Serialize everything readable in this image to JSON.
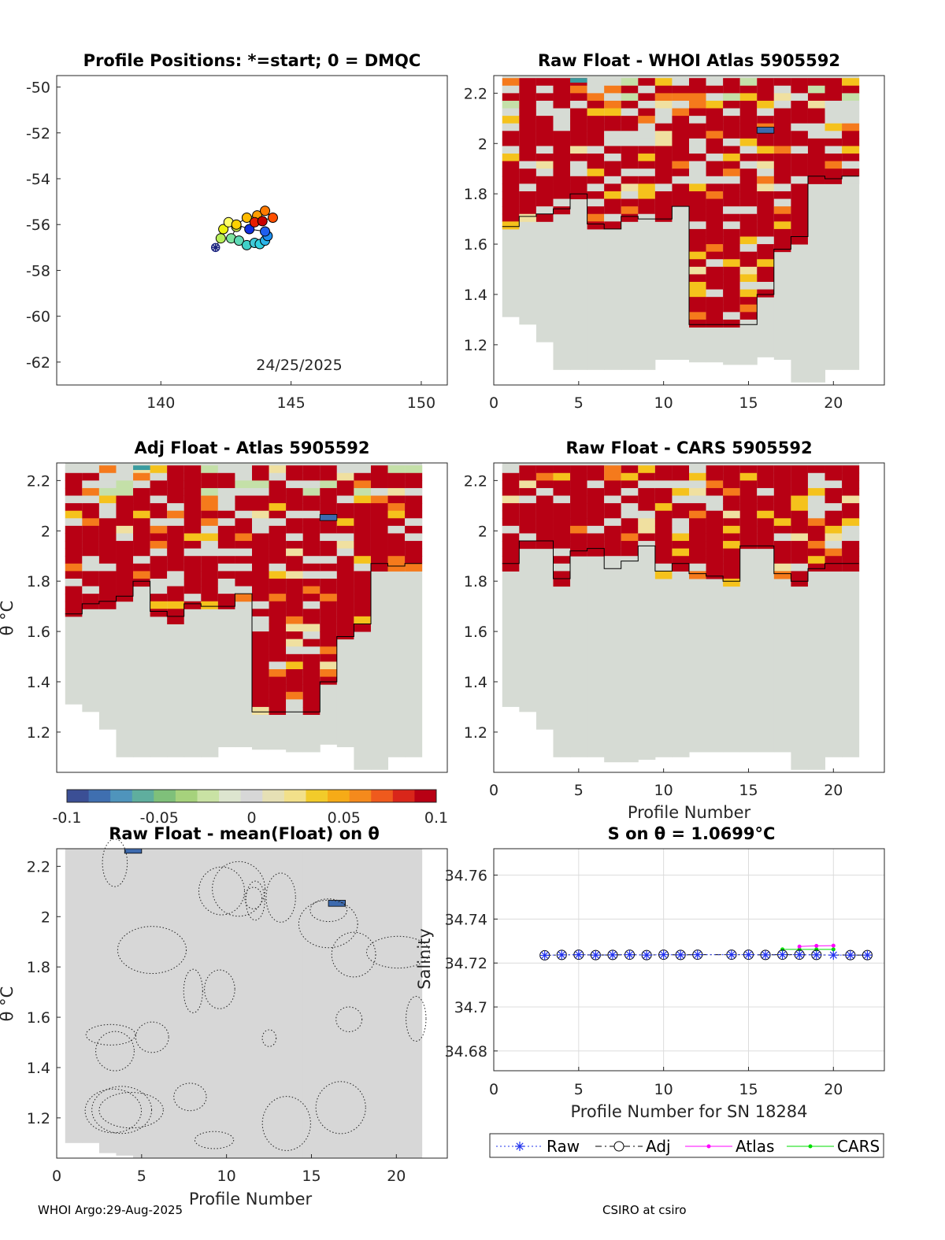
{
  "colors": {
    "land": "#d6dbd4",
    "high": "#b80014",
    "orange": "#f57a1c",
    "yellow": "#f5c21c",
    "pale": "#f0e0a0",
    "green": "#c4e0a8",
    "blue": "#3d6aae",
    "dark": "#1d2b73",
    "atlas": "#ff00ff",
    "cars": "#00dd00",
    "raw": "#2233ee"
  },
  "chart_data": [
    {
      "type": "scatter",
      "id": "positions",
      "title": "Profile Positions: *=start; 0 = DMQC",
      "xlim": [
        136,
        151
      ],
      "ylim": [
        -63,
        -49.5
      ],
      "xticks": [
        140,
        145,
        150
      ],
      "yticks": [
        -50,
        -52,
        -54,
        -56,
        -58,
        -60,
        -62
      ],
      "annotation": "24/25/2025",
      "start": {
        "lon": 142.1,
        "lat": -57.0
      },
      "points": [
        {
          "lon": 142.3,
          "lat": -56.6,
          "color": "#b8ef58"
        },
        {
          "lon": 142.4,
          "lat": -56.2,
          "color": "#eef30f"
        },
        {
          "lon": 142.6,
          "lat": -55.9,
          "color": "#ffff66"
        },
        {
          "lon": 142.9,
          "lat": -56.1,
          "color": "#d0f04c"
        },
        {
          "lon": 142.7,
          "lat": -56.6,
          "color": "#7ee3a0"
        },
        {
          "lon": 143.0,
          "lat": -56.7,
          "color": "#5fd9b6"
        },
        {
          "lon": 143.3,
          "lat": -56.9,
          "color": "#40d0c8"
        },
        {
          "lon": 143.6,
          "lat": -56.8,
          "color": "#3fc9d8"
        },
        {
          "lon": 143.8,
          "lat": -56.85,
          "color": "#32d1e0"
        },
        {
          "lon": 144.0,
          "lat": -56.7,
          "color": "#2bb5ea"
        },
        {
          "lon": 144.1,
          "lat": -56.5,
          "color": "#1e8ff0"
        },
        {
          "lon": 144.0,
          "lat": -56.3,
          "color": "#1f5fee"
        },
        {
          "lon": 143.4,
          "lat": -56.2,
          "color": "#1030e0"
        },
        {
          "lon": 142.9,
          "lat": -56.0,
          "color": "#ffd100"
        },
        {
          "lon": 143.3,
          "lat": -55.7,
          "color": "#ffbb00"
        },
        {
          "lon": 143.7,
          "lat": -55.6,
          "color": "#ff9d00"
        },
        {
          "lon": 144.0,
          "lat": -55.4,
          "color": "#ff7a00"
        },
        {
          "lon": 144.3,
          "lat": -55.7,
          "color": "#ff5000"
        },
        {
          "lon": 143.6,
          "lat": -55.9,
          "color": "#e81e00"
        },
        {
          "lon": 143.9,
          "lat": -55.85,
          "color": "#c80000"
        }
      ]
    },
    {
      "type": "heatmap",
      "id": "raw-atlas",
      "title": "Raw Float - WHOI Atlas  5905592",
      "xlim": [
        0,
        23
      ],
      "ylim": [
        1.04,
        2.27
      ],
      "xticks": [
        0,
        5,
        10,
        15,
        20
      ],
      "yticks": [
        1.2,
        1.4,
        1.6,
        1.8,
        2,
        2.2
      ],
      "redCutoff": [
        1.67,
        1.71,
        1.72,
        1.74,
        1.8,
        1.68,
        1.66,
        1.71,
        1.7,
        1.7,
        1.75,
        1.28,
        1.28,
        1.28,
        1.28,
        1.4,
        1.58,
        1.63,
        1.87,
        1.86,
        1.87
      ],
      "greyFloor": [
        1.31,
        1.28,
        1.21,
        1.1,
        1.1,
        1.1,
        1.1,
        1.1,
        1.1,
        1.14,
        1.14,
        1.13,
        1.13,
        1.12,
        1.12,
        1.15,
        1.14,
        1.05,
        1.05,
        1.1,
        1.1
      ]
    },
    {
      "type": "heatmap",
      "id": "adj-atlas",
      "title": "Adj Float - Atlas  5905592",
      "xlim": [
        0,
        23
      ],
      "ylim": [
        1.04,
        2.27
      ],
      "xticks": [],
      "yticks": [
        1.2,
        1.4,
        1.6,
        1.8,
        2,
        2.2
      ],
      "ylabel": "θ °C",
      "redCutoff": [
        1.67,
        1.71,
        1.72,
        1.74,
        1.8,
        1.68,
        1.66,
        1.71,
        1.7,
        1.7,
        1.75,
        1.28,
        1.28,
        1.28,
        1.28,
        1.4,
        1.58,
        1.63,
        1.87,
        1.86,
        1.87
      ],
      "greyFloor": [
        1.31,
        1.28,
        1.21,
        1.1,
        1.1,
        1.1,
        1.1,
        1.1,
        1.1,
        1.14,
        1.14,
        1.13,
        1.13,
        1.12,
        1.12,
        1.15,
        1.14,
        1.05,
        1.05,
        1.1,
        1.1
      ]
    },
    {
      "type": "heatmap",
      "id": "raw-cars",
      "title": "Raw Float - CARS  5905592",
      "xlim": [
        0,
        23
      ],
      "ylim": [
        1.04,
        2.27
      ],
      "xticks": [
        0,
        5,
        10,
        15,
        20
      ],
      "yticks": [
        1.2,
        1.4,
        1.6,
        1.8,
        2,
        2.2
      ],
      "xlabel": "Profile Number",
      "redCutoff": [
        1.87,
        1.96,
        1.96,
        1.81,
        1.92,
        1.93,
        1.85,
        1.88,
        1.94,
        1.84,
        1.87,
        1.83,
        1.82,
        1.8,
        1.94,
        1.94,
        1.83,
        1.8,
        1.85,
        1.87,
        1.87
      ],
      "greyFloor": [
        1.3,
        1.28,
        1.21,
        1.1,
        1.1,
        1.1,
        1.08,
        1.08,
        1.09,
        1.1,
        1.1,
        1.12,
        1.12,
        1.12,
        1.12,
        1.12,
        1.12,
        1.05,
        1.05,
        1.1,
        1.1
      ]
    },
    {
      "type": "heatmap",
      "id": "raw-mean",
      "title": "Raw Float - mean(Float) on θ",
      "xlim": [
        0,
        23
      ],
      "ylim": [
        1.04,
        2.27
      ],
      "xticks": [
        0,
        5,
        10,
        15,
        20
      ],
      "yticks": [
        1.2,
        1.4,
        1.6,
        1.8,
        2,
        2.2
      ],
      "xlabel": "Profile Number",
      "ylabel": "θ °C",
      "redCutoff": [],
      "greyFloor": [
        1.1,
        1.1,
        1.06,
        1.05,
        1.04,
        1.04,
        1.04,
        1.04,
        1.04,
        1.04,
        1.04,
        1.04,
        1.04,
        1.04,
        1.04,
        1.04,
        1.04,
        1.04,
        1.04,
        1.04,
        1.04
      ]
    },
    {
      "type": "line",
      "id": "salinity",
      "title": "S on θ = 1.0699°C",
      "xlabel": "Profile Number for SN 18284",
      "ylabel": "Salinity",
      "xlim": [
        0,
        23
      ],
      "ylim": [
        34.671,
        34.772
      ],
      "xticks": [
        0,
        5,
        10,
        15,
        20
      ],
      "yticks": [
        34.68,
        34.7,
        34.72,
        34.74,
        34.76
      ],
      "ytick_labels": [
        "34.68",
        "34.7",
        "34.72",
        "34.74",
        "34.76"
      ],
      "series": [
        {
          "name": "Raw",
          "x": [
            3,
            4,
            5,
            6,
            7,
            8,
            9,
            10,
            11,
            12,
            14,
            15,
            16,
            17,
            18,
            19,
            20,
            21,
            22
          ],
          "values": [
            34.7235,
            34.7237,
            34.7238,
            34.7236,
            34.7237,
            34.7238,
            34.7236,
            34.7238,
            34.7237,
            34.7238,
            34.7238,
            34.7238,
            34.7237,
            34.7238,
            34.7238,
            34.7237,
            34.7236,
            34.7236,
            34.7236
          ]
        },
        {
          "name": "Adj",
          "x": [
            3,
            4,
            5,
            6,
            7,
            8,
            9,
            10,
            11,
            12,
            14,
            15,
            16,
            17,
            18,
            19,
            21,
            22
          ],
          "values": [
            34.7235,
            34.7237,
            34.7238,
            34.7236,
            34.7237,
            34.7238,
            34.7236,
            34.7238,
            34.7237,
            34.7238,
            34.7238,
            34.7238,
            34.7237,
            34.7238,
            34.7238,
            34.7237,
            34.7236,
            34.7236
          ]
        },
        {
          "name": "Atlas",
          "x": [
            18,
            19,
            20
          ],
          "values": [
            34.7275,
            34.7278,
            34.7279
          ]
        },
        {
          "name": "CARS",
          "x": [
            17,
            18,
            19,
            20
          ],
          "values": [
            34.7262,
            34.7262,
            34.7262,
            34.7262
          ]
        }
      ]
    }
  ],
  "colorbar": {
    "min": -0.1,
    "max": 0.1,
    "tick_labels": [
      "-0.1",
      "-0.05",
      "0",
      "0.05",
      "0.1"
    ],
    "colors": [
      "#3b4f95",
      "#3f6fb0",
      "#4f94bc",
      "#5fae9e",
      "#7fc07a",
      "#a6d27c",
      "#c9e2a4",
      "#dde5cf",
      "#d7d7d7",
      "#e6e0b5",
      "#f2e08a",
      "#f2cb2a",
      "#f6ab17",
      "#f58a1c",
      "#ef5a1d",
      "#d9261a",
      "#b80014"
    ]
  },
  "footer": {
    "left": "WHOI Argo:29-Aug-2025",
    "right": "CSIRO at csiro"
  }
}
